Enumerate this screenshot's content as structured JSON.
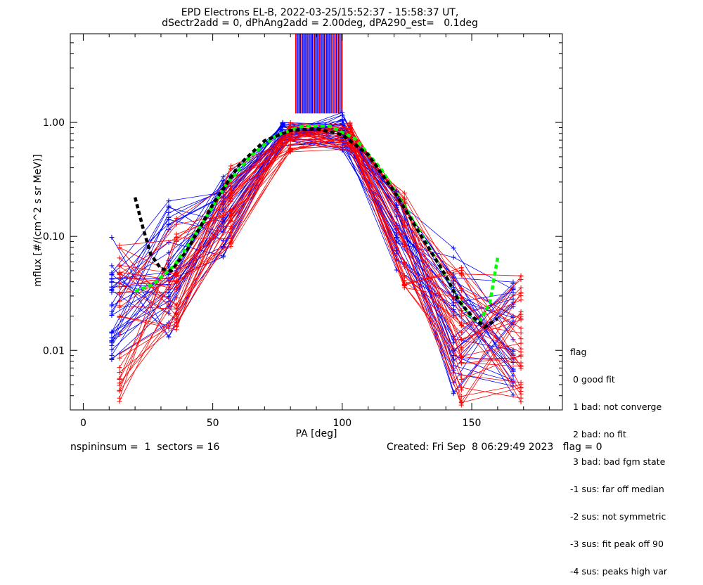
{
  "title_line1": "EPD Electrons EL-B, 2022-03-25/15:52:37 - 15:58:37 UT,",
  "title_line2": "dSectr2add = 0, dPhAng2add = 2.00deg, dPA290_est=   0.1deg",
  "footer": {
    "left": "nspininsum =  1  sectors = 16",
    "right": "Created: Fri Sep  8 06:29:49 2023   flag = 0"
  },
  "flag_legend": {
    "title": "flag",
    "items": [
      " 0 good fit",
      " 1 bad: not converge",
      " 2 bad: no fit",
      " 3 bad: bad fgm state",
      "-1 sus: far off median",
      "-2 sus: not symmetric",
      "-3 sus: fit peak off 90",
      "-4 sus: peaks high var"
    ]
  },
  "chart_data": {
    "type": "line",
    "xlabel": "PA [deg]",
    "ylabel": "mflux [#/(cm^2 s sr MeV)]",
    "xlim": [
      -5,
      185
    ],
    "ylim": [
      0.003,
      6.0
    ],
    "yscale": "log",
    "xticks": [
      0,
      50,
      100,
      150
    ],
    "xtick_labels": [
      "0",
      "50",
      "100",
      "150"
    ],
    "yticks": [
      0.01,
      0.1,
      1.0
    ],
    "ytick_labels": [
      "0.01",
      "0.10",
      "1.00"
    ],
    "pa_bins": [
      11,
      14,
      33,
      36,
      54,
      57,
      77,
      80,
      100,
      103,
      121,
      124,
      143,
      146,
      166,
      169
    ],
    "colors": {
      "blue": "#0000ff",
      "red": "#ff0000",
      "green_fit": "#00ff00",
      "black_fit": "#000000"
    },
    "series": [
      {
        "color": "blue",
        "style": "solid-with-plus-markers",
        "x": [
          11,
          33,
          54,
          77,
          100,
          121,
          143,
          166
        ],
        "y_range": [
          [
            0.0065,
            0.105
          ],
          [
            0.012,
            0.21
          ],
          [
            0.065,
            0.35
          ],
          [
            0.62,
            1.0
          ],
          [
            0.55,
            1.25
          ],
          [
            0.05,
            0.3
          ],
          [
            0.004,
            0.08
          ],
          [
            0.004,
            0.04
          ]
        ]
      },
      {
        "color": "red",
        "style": "solid-with-plus-markers",
        "x": [
          14,
          36,
          57,
          80,
          103,
          124,
          146,
          169
        ],
        "y_range": [
          [
            0.0035,
            0.09
          ],
          [
            0.015,
            0.15
          ],
          [
            0.08,
            0.42
          ],
          [
            0.55,
            1.0
          ],
          [
            0.55,
            1.0
          ],
          [
            0.035,
            0.25
          ],
          [
            0.003,
            0.06
          ],
          [
            0.003,
            0.05
          ]
        ]
      },
      {
        "color": "green_fit",
        "style": "dashed-thick",
        "points": [
          [
            20,
            0.033
          ],
          [
            27,
            0.038
          ],
          [
            35,
            0.055
          ],
          [
            45,
            0.12
          ],
          [
            55,
            0.28
          ],
          [
            65,
            0.52
          ],
          [
            75,
            0.78
          ],
          [
            85,
            0.93
          ],
          [
            95,
            0.93
          ],
          [
            105,
            0.72
          ],
          [
            115,
            0.39
          ],
          [
            125,
            0.17
          ],
          [
            135,
            0.07
          ],
          [
            145,
            0.028
          ],
          [
            150,
            0.019
          ],
          [
            153,
            0.018
          ],
          [
            157,
            0.026
          ],
          [
            160,
            0.065
          ]
        ]
      },
      {
        "color": "black_fit",
        "style": "dashed-thick",
        "points": [
          [
            20,
            0.22
          ],
          [
            23,
            0.12
          ],
          [
            26,
            0.07
          ],
          [
            30,
            0.052
          ],
          [
            34,
            0.05
          ],
          [
            40,
            0.075
          ],
          [
            50,
            0.19
          ],
          [
            60,
            0.42
          ],
          [
            70,
            0.69
          ],
          [
            80,
            0.85
          ],
          [
            90,
            0.88
          ],
          [
            100,
            0.78
          ],
          [
            110,
            0.52
          ],
          [
            120,
            0.25
          ],
          [
            130,
            0.105
          ],
          [
            140,
            0.045
          ],
          [
            145,
            0.027
          ],
          [
            150,
            0.02
          ],
          [
            155,
            0.016
          ],
          [
            160,
            0.019
          ]
        ]
      }
    ],
    "bars_above_peak": {
      "x_range": [
        82,
        100
      ],
      "y_range": [
        1.2,
        6.0
      ],
      "colors": [
        "blue",
        "red"
      ]
    }
  }
}
